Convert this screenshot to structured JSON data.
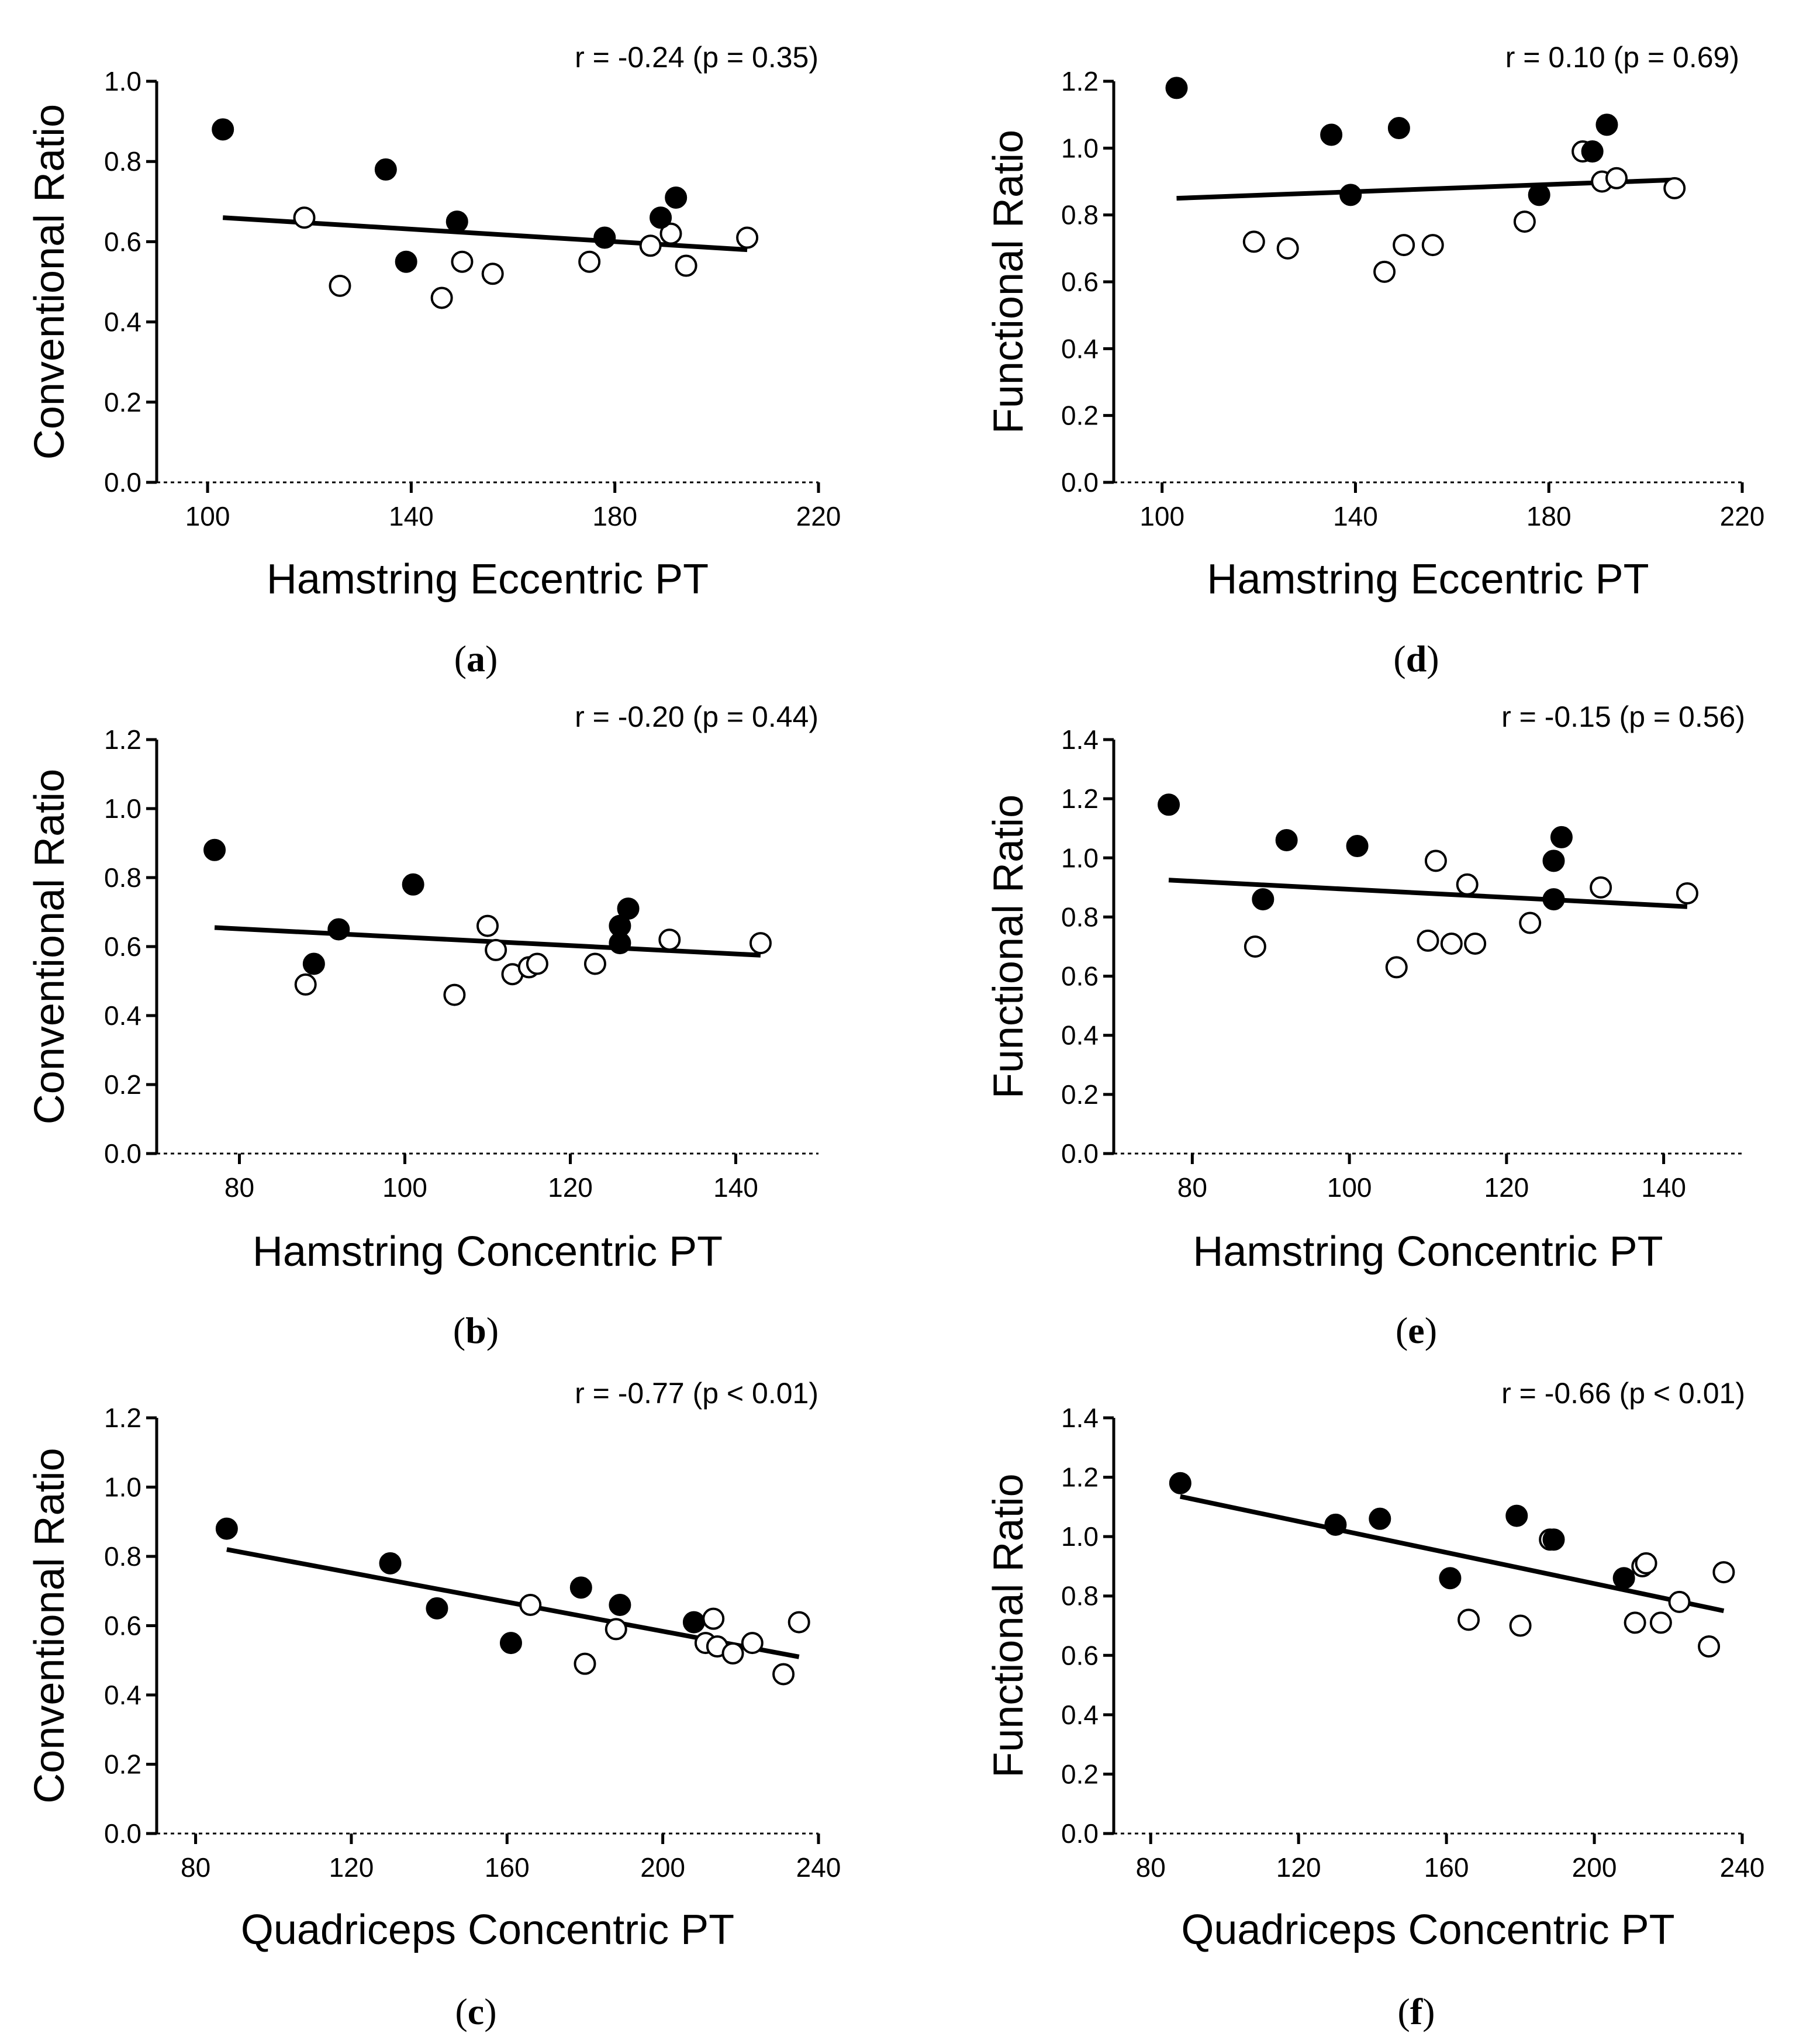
{
  "chart_data": [
    {
      "id": "a",
      "type": "scatter",
      "panel_label": "a",
      "xlabel": "Hamstring Eccentric PT",
      "ylabel": "Conventional Ratio",
      "stat": "r = -0.24 (p = 0.35)",
      "xlim": [
        90,
        220
      ],
      "ylim": [
        0,
        1.0
      ],
      "xticks": [
        "100",
        "140",
        "180",
        "220"
      ],
      "xtick_values": [
        100,
        140,
        180,
        220
      ],
      "yticks": [
        "0.0",
        "0.2",
        "0.4",
        "0.6",
        "0.8",
        "1.0"
      ],
      "ytick_values": [
        0,
        0.2,
        0.4,
        0.6,
        0.8,
        1.0
      ],
      "regression": {
        "x": [
          103,
          206
        ],
        "y": [
          0.66,
          0.58
        ]
      },
      "series": [
        {
          "name": "filled",
          "points": [
            [
              103,
              0.88
            ],
            [
              135,
              0.78
            ],
            [
              139,
              0.55
            ],
            [
              149,
              0.65
            ],
            [
              178,
              0.61
            ],
            [
              189,
              0.66
            ],
            [
              192,
              0.71
            ]
          ]
        },
        {
          "name": "open",
          "points": [
            [
              119,
              0.66
            ],
            [
              126,
              0.49
            ],
            [
              146,
              0.46
            ],
            [
              150,
              0.55
            ],
            [
              156,
              0.52
            ],
            [
              175,
              0.55
            ],
            [
              187,
              0.59
            ],
            [
              191,
              0.62
            ],
            [
              194,
              0.54
            ],
            [
              206,
              0.61
            ]
          ]
        }
      ]
    },
    {
      "id": "b",
      "type": "scatter",
      "panel_label": "b",
      "xlabel": "Hamstring Concentric PT",
      "ylabel": "Conventional Ratio",
      "stat": "r = -0.20 (p = 0.44)",
      "xlim": [
        70,
        150
      ],
      "ylim": [
        0,
        1.2
      ],
      "xticks": [
        "80",
        "100",
        "120",
        "140"
      ],
      "xtick_values": [
        80,
        100,
        120,
        140
      ],
      "yticks": [
        "0.0",
        "0.2",
        "0.4",
        "0.6",
        "0.8",
        "1.0",
        "1.2"
      ],
      "ytick_values": [
        0,
        0.2,
        0.4,
        0.6,
        0.8,
        1.0,
        1.2
      ],
      "regression": {
        "x": [
          77,
          143
        ],
        "y": [
          0.655,
          0.575
        ]
      },
      "series": [
        {
          "name": "filled",
          "points": [
            [
              77,
              0.88
            ],
            [
              89,
              0.55
            ],
            [
              92,
              0.65
            ],
            [
              101,
              0.78
            ],
            [
              126,
              0.66
            ],
            [
              126,
              0.61
            ],
            [
              127,
              0.71
            ]
          ]
        },
        {
          "name": "open",
          "points": [
            [
              88,
              0.49
            ],
            [
              106,
              0.46
            ],
            [
              110,
              0.66
            ],
            [
              111,
              0.59
            ],
            [
              113,
              0.52
            ],
            [
              115,
              0.54
            ],
            [
              116,
              0.55
            ],
            [
              123,
              0.55
            ],
            [
              132,
              0.62
            ],
            [
              143,
              0.61
            ]
          ]
        }
      ]
    },
    {
      "id": "c",
      "type": "scatter",
      "panel_label": "c",
      "xlabel": "Quadriceps Concentric PT",
      "ylabel": "Conventional Ratio",
      "stat": "r = -0.77 (p < 0.01)",
      "xlim": [
        70,
        240
      ],
      "ylim": [
        0,
        1.2
      ],
      "xticks": [
        "80",
        "120",
        "160",
        "200",
        "240"
      ],
      "xtick_values": [
        80,
        120,
        160,
        200,
        240
      ],
      "yticks": [
        "0.0",
        "0.2",
        "0.4",
        "0.6",
        "0.8",
        "1.0",
        "1.2"
      ],
      "ytick_values": [
        0,
        0.2,
        0.4,
        0.6,
        0.8,
        1.0,
        1.2
      ],
      "regression": {
        "x": [
          88,
          235
        ],
        "y": [
          0.82,
          0.51
        ]
      },
      "series": [
        {
          "name": "filled",
          "points": [
            [
              88,
              0.88
            ],
            [
              130,
              0.78
            ],
            [
              142,
              0.65
            ],
            [
              161,
              0.55
            ],
            [
              179,
              0.71
            ],
            [
              189,
              0.66
            ],
            [
              208,
              0.61
            ]
          ]
        },
        {
          "name": "open",
          "points": [
            [
              166,
              0.66
            ],
            [
              180,
              0.49
            ],
            [
              188,
              0.59
            ],
            [
              211,
              0.55
            ],
            [
              213,
              0.62
            ],
            [
              214,
              0.54
            ],
            [
              218,
              0.52
            ],
            [
              223,
              0.55
            ],
            [
              231,
              0.46
            ],
            [
              235,
              0.61
            ]
          ]
        }
      ]
    },
    {
      "id": "d",
      "type": "scatter",
      "panel_label": "d",
      "xlabel": "Hamstring Eccentric PT",
      "ylabel": "Functional Ratio",
      "stat": "r = 0.10 (p = 0.69)",
      "xlim": [
        90,
        220
      ],
      "ylim": [
        0,
        1.2
      ],
      "xticks": [
        "100",
        "140",
        "180",
        "220"
      ],
      "xtick_values": [
        100,
        140,
        180,
        220
      ],
      "yticks": [
        "0.0",
        "0.2",
        "0.4",
        "0.6",
        "0.8",
        "1.0",
        "1.2"
      ],
      "ytick_values": [
        0,
        0.2,
        0.4,
        0.6,
        0.8,
        1.0,
        1.2
      ],
      "regression": {
        "x": [
          103,
          206
        ],
        "y": [
          0.85,
          0.905
        ]
      },
      "series": [
        {
          "name": "filled",
          "points": [
            [
              103,
              1.18
            ],
            [
              135,
              1.04
            ],
            [
              139,
              0.86
            ],
            [
              149,
              1.06
            ],
            [
              178,
              0.86
            ],
            [
              189,
              0.99
            ],
            [
              192,
              1.07
            ]
          ]
        },
        {
          "name": "open",
          "points": [
            [
              119,
              0.72
            ],
            [
              126,
              0.7
            ],
            [
              146,
              0.63
            ],
            [
              150,
              0.71
            ],
            [
              156,
              0.71
            ],
            [
              175,
              0.78
            ],
            [
              187,
              0.99
            ],
            [
              191,
              0.9
            ],
            [
              194,
              0.91
            ],
            [
              206,
              0.88
            ]
          ]
        }
      ]
    },
    {
      "id": "e",
      "type": "scatter",
      "panel_label": "e",
      "xlabel": "Hamstring Concentric PT",
      "ylabel": "Functional Ratio",
      "stat": "r = -0.15 (p = 0.56)",
      "xlim": [
        70,
        150
      ],
      "ylim": [
        0,
        1.4
      ],
      "xticks": [
        "80",
        "100",
        "120",
        "140"
      ],
      "xtick_values": [
        80,
        100,
        120,
        140
      ],
      "yticks": [
        "0.0",
        "0.2",
        "0.4",
        "0.6",
        "0.8",
        "1.0",
        "1.2",
        "1.4"
      ],
      "ytick_values": [
        0,
        0.2,
        0.4,
        0.6,
        0.8,
        1.0,
        1.2,
        1.4
      ],
      "regression": {
        "x": [
          77,
          143
        ],
        "y": [
          0.925,
          0.835
        ]
      },
      "series": [
        {
          "name": "filled",
          "points": [
            [
              77,
              1.18
            ],
            [
              89,
              0.86
            ],
            [
              92,
              1.06
            ],
            [
              101,
              1.04
            ],
            [
              126,
              0.99
            ],
            [
              126,
              0.86
            ],
            [
              127,
              1.07
            ]
          ]
        },
        {
          "name": "open",
          "points": [
            [
              88,
              0.7
            ],
            [
              106,
              0.63
            ],
            [
              110,
              0.72
            ],
            [
              111,
              0.99
            ],
            [
              113,
              0.71
            ],
            [
              115,
              0.91
            ],
            [
              116,
              0.71
            ],
            [
              123,
              0.78
            ],
            [
              132,
              0.9
            ],
            [
              143,
              0.88
            ]
          ]
        }
      ]
    },
    {
      "id": "f",
      "type": "scatter",
      "panel_label": "f",
      "xlabel": "Quadriceps Concentric PT",
      "ylabel": "Functional Ratio",
      "stat": "r = -0.66 (p < 0.01)",
      "xlim": [
        70,
        240
      ],
      "ylim": [
        0,
        1.4
      ],
      "xticks": [
        "80",
        "120",
        "160",
        "200",
        "240"
      ],
      "xtick_values": [
        80,
        120,
        160,
        200,
        240
      ],
      "yticks": [
        "0.0",
        "0.2",
        "0.4",
        "0.6",
        "0.8",
        "1.0",
        "1.2",
        "1.4"
      ],
      "ytick_values": [
        0,
        0.2,
        0.4,
        0.6,
        0.8,
        1.0,
        1.2,
        1.4
      ],
      "regression": {
        "x": [
          88,
          235
        ],
        "y": [
          1.135,
          0.75
        ]
      },
      "series": [
        {
          "name": "filled",
          "points": [
            [
              88,
              1.18
            ],
            [
              130,
              1.04
            ],
            [
              142,
              1.06
            ],
            [
              161,
              0.86
            ],
            [
              179,
              1.07
            ],
            [
              189,
              0.99
            ],
            [
              208,
              0.86
            ]
          ]
        },
        {
          "name": "open",
          "points": [
            [
              166,
              0.72
            ],
            [
              180,
              0.7
            ],
            [
              188,
              0.99
            ],
            [
              211,
              0.71
            ],
            [
              213,
              0.9
            ],
            [
              214,
              0.91
            ],
            [
              218,
              0.71
            ],
            [
              223,
              0.78
            ],
            [
              231,
              0.63
            ],
            [
              235,
              0.88
            ]
          ]
        }
      ]
    }
  ]
}
